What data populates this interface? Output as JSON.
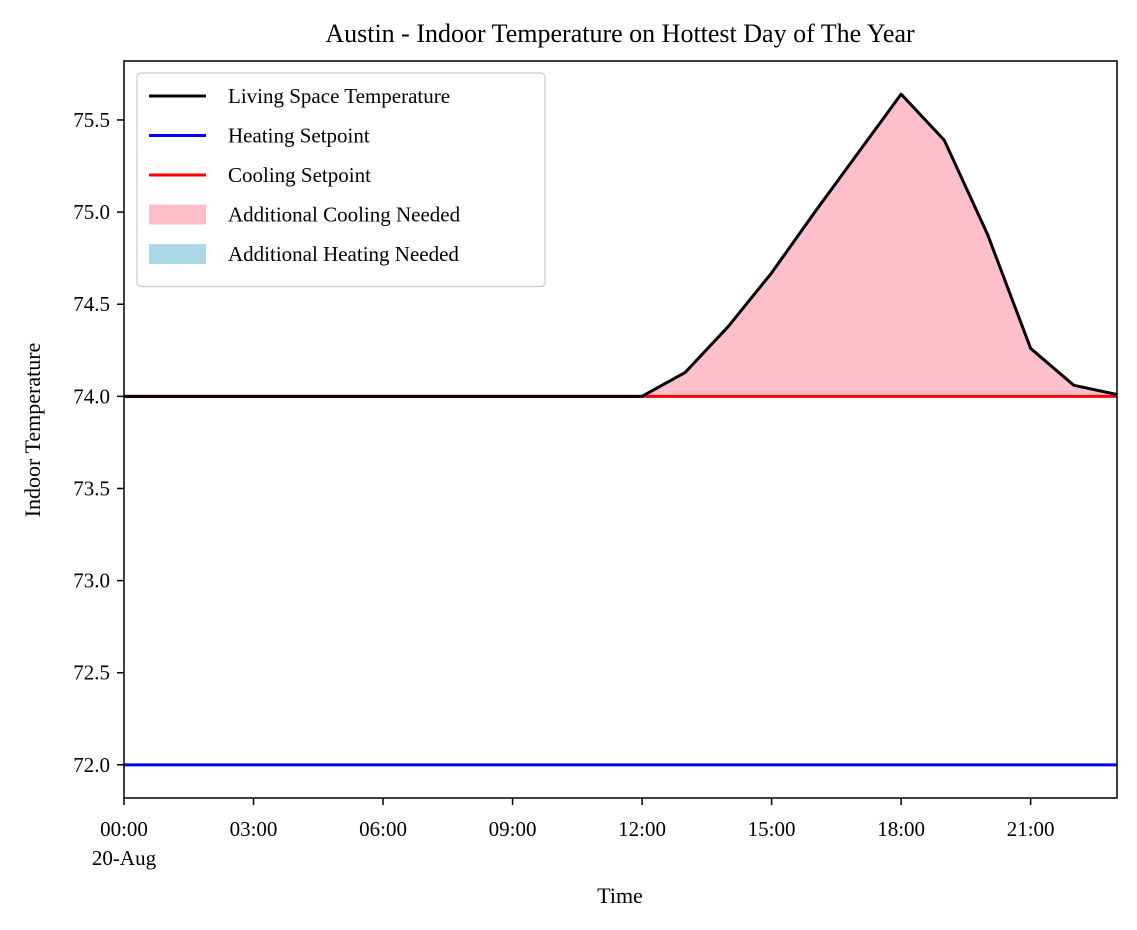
{
  "chart_data": {
    "type": "line",
    "title": "Austin - Indoor Temperature on Hottest Day of The Year",
    "xlabel": "Time",
    "ylabel": "Indoor Temperature",
    "x_unit": "hour of day, 20-Aug",
    "xlim": [
      0,
      23
    ],
    "ylim": [
      71.82,
      75.82
    ],
    "x_ticks": [
      0,
      3,
      6,
      9,
      12,
      15,
      18,
      21
    ],
    "x_tick_labels": [
      "00:00",
      "03:00",
      "06:00",
      "09:00",
      "12:00",
      "15:00",
      "18:00",
      "21:00"
    ],
    "x_tick_sublabel": "20-Aug",
    "y_ticks": [
      72.0,
      72.5,
      73.0,
      73.5,
      74.0,
      74.5,
      75.0,
      75.5
    ],
    "y_tick_labels": [
      "72.0",
      "72.5",
      "73.0",
      "73.5",
      "74.0",
      "74.5",
      "75.0",
      "75.5"
    ],
    "grid": false,
    "legend_position": "top-left",
    "x": [
      0,
      1,
      2,
      3,
      4,
      5,
      6,
      7,
      8,
      9,
      10,
      11,
      12,
      13,
      14,
      15,
      16,
      17,
      18,
      19,
      20,
      21,
      22,
      23
    ],
    "series": [
      {
        "name": "Living Space Temperature",
        "kind": "line",
        "color": "#000000",
        "values": [
          74.0,
          74.0,
          74.0,
          74.0,
          74.0,
          74.0,
          74.0,
          74.0,
          74.0,
          74.0,
          74.0,
          74.0,
          74.0,
          74.13,
          74.38,
          74.67,
          75.0,
          75.32,
          75.64,
          75.39,
          74.88,
          74.26,
          74.06,
          74.01
        ]
      },
      {
        "name": "Heating Setpoint",
        "kind": "line",
        "color": "#0000ff",
        "values": [
          72.0,
          72.0,
          72.0,
          72.0,
          72.0,
          72.0,
          72.0,
          72.0,
          72.0,
          72.0,
          72.0,
          72.0,
          72.0,
          72.0,
          72.0,
          72.0,
          72.0,
          72.0,
          72.0,
          72.0,
          72.0,
          72.0,
          72.0,
          72.0
        ]
      },
      {
        "name": "Cooling Setpoint",
        "kind": "line",
        "color": "#ff0000",
        "values": [
          74.0,
          74.0,
          74.0,
          74.0,
          74.0,
          74.0,
          74.0,
          74.0,
          74.0,
          74.0,
          74.0,
          74.0,
          74.0,
          74.0,
          74.0,
          74.0,
          74.0,
          74.0,
          74.0,
          74.0,
          74.0,
          74.0,
          74.0,
          74.0
        ]
      }
    ],
    "fills": [
      {
        "name": "Additional Cooling Needed",
        "color": "#ffc0cb",
        "between": [
          "Living Space Temperature",
          "Cooling Setpoint"
        ],
        "where": "above"
      },
      {
        "name": "Additional Heating Needed",
        "color": "#add8e6",
        "between": [
          "Living Space Temperature",
          "Heating Setpoint"
        ],
        "where": "below"
      }
    ]
  }
}
